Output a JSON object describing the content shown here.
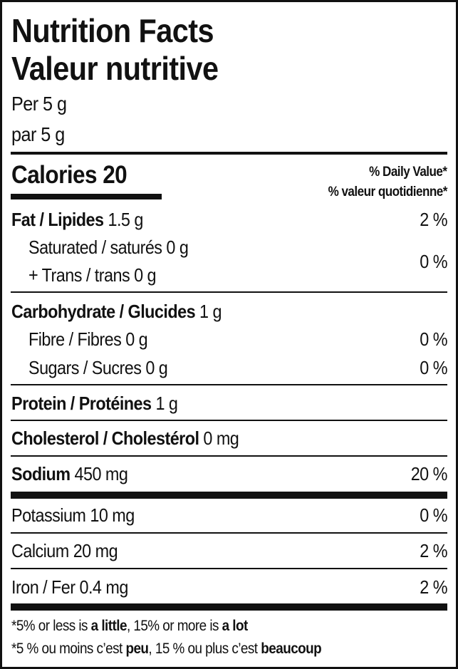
{
  "header": {
    "title_en": "Nutrition Facts",
    "title_fr": "Valeur nutritive",
    "serving_en": "Per 5 g",
    "serving_fr": "par 5 g"
  },
  "calories": {
    "label": "Calories",
    "value": "20"
  },
  "daily_value": {
    "en": "% Daily Value*",
    "fr": "% valeur quotidienne*"
  },
  "nutrients": {
    "fat": {
      "label": "Fat / Lipides",
      "amount": "1.5 g",
      "dv": "2 %"
    },
    "saturated": {
      "label": "Saturated / saturés",
      "amount": "0 g"
    },
    "trans": {
      "label": "+ Trans / trans",
      "amount": "0 g"
    },
    "sat_trans_dv": "0 %",
    "carbohydrate": {
      "label": "Carbohydrate / Glucides",
      "amount": "1 g"
    },
    "fibre": {
      "label": "Fibre / Fibres",
      "amount": "0 g",
      "dv": "0 %"
    },
    "sugars": {
      "label": "Sugars / Sucres",
      "amount": "0 g",
      "dv": "0 %"
    },
    "protein": {
      "label": "Protein / Protéines",
      "amount": "1 g"
    },
    "cholesterol": {
      "label": "Cholesterol / Cholestérol",
      "amount": "0 mg"
    },
    "sodium": {
      "label": "Sodium",
      "amount": "450 mg",
      "dv": "20 %"
    },
    "potassium": {
      "label": "Potassium",
      "amount": "10 mg",
      "dv": "0 %"
    },
    "calcium": {
      "label": "Calcium",
      "amount": "20 mg",
      "dv": "2 %"
    },
    "iron": {
      "label": "Iron / Fer",
      "amount": "0.4 mg",
      "dv": "2 %"
    }
  },
  "footnote": {
    "en_1": "*5% or less is ",
    "en_b1": "a little",
    "en_2": ", 15% or more is ",
    "en_b2": "a lot",
    "fr_1": "*5 % ou moins c’est ",
    "fr_b1": "peu",
    "fr_2": ", 15 % ou plus c’est ",
    "fr_b2": "beaucoup"
  }
}
